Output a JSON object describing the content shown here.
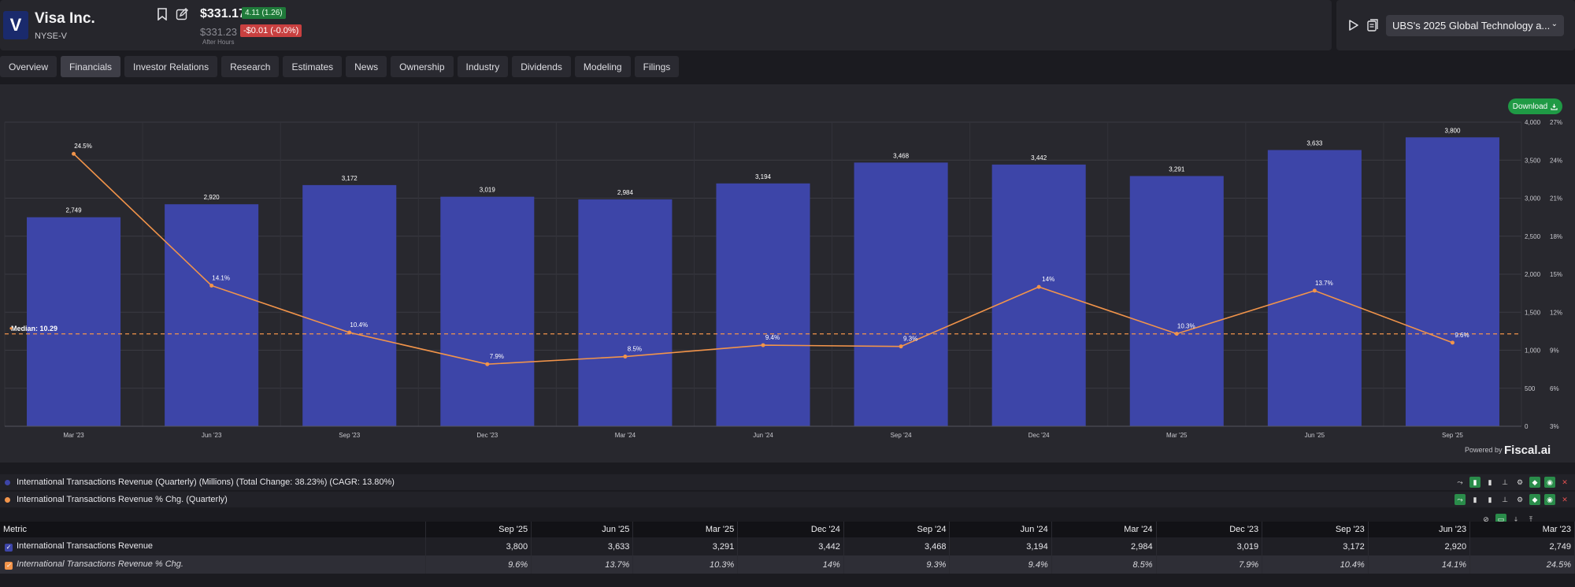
{
  "header": {
    "logo_letter": "V",
    "company": "Visa Inc.",
    "ticker": "NYSE-V",
    "price": "$331.17",
    "change_pos": "4.11 (1.26)",
    "after_hours_price": "$331.23",
    "change_neg": "-$0.01 (-0.0%)",
    "after_hours_label": "After Hours"
  },
  "event": {
    "label": "UBS's 2025 Global Technology a..."
  },
  "tabs": [
    "Overview",
    "Financials",
    "Investor Relations",
    "Research",
    "Estimates",
    "News",
    "Ownership",
    "Industry",
    "Dividends",
    "Modeling",
    "Filings"
  ],
  "active_tab": "Financials",
  "download_label": "Download",
  "powered_label": "Powered by",
  "brand": "Fiscal.ai",
  "chart_data": {
    "type": "bar",
    "categories": [
      "Mar '23",
      "Jun '23",
      "Sep '23",
      "Dec '23",
      "Mar '24",
      "Jun '24",
      "Sep '24",
      "Dec '24",
      "Mar '25",
      "Jun '25",
      "Sep '25"
    ],
    "series": [
      {
        "name": "International Transactions Revenue (Quarterly) (Millions) (Total Change: 38.23%) (CAGR: 13.80%)",
        "type": "bar",
        "axis": "left",
        "values": [
          2749,
          2920,
          3172,
          3019,
          2984,
          3194,
          3468,
          3442,
          3291,
          3633,
          3800
        ],
        "labels": [
          "2,749",
          "2,920",
          "3,172",
          "3,019",
          "2,984",
          "3,194",
          "3,468",
          "3,442",
          "3,291",
          "3,633",
          "3,800"
        ]
      },
      {
        "name": "International Transactions Revenue % Chg. (Quarterly)",
        "type": "line",
        "axis": "right",
        "values": [
          24.5,
          14.1,
          10.4,
          7.9,
          8.5,
          9.4,
          9.3,
          14,
          10.3,
          13.7,
          9.6
        ],
        "labels": [
          "24.5%",
          "14.1%",
          "10.4%",
          "7.9%",
          "8.5%",
          "9.4%",
          "9.3%",
          "14%",
          "10.3%",
          "13.7%",
          "9.6%"
        ]
      }
    ],
    "y_left": {
      "ylim": [
        0,
        4000
      ],
      "ticks": [
        0,
        500,
        1000,
        1500,
        2000,
        2500,
        3000,
        3500,
        4000
      ],
      "tick_labels": [
        "0",
        "500",
        "1,000",
        "1,500",
        "2,000",
        "2,500",
        "3,000",
        "3,500",
        "4,000"
      ]
    },
    "y_right": {
      "ylim": [
        3,
        27
      ],
      "ticks": [
        3,
        6,
        9,
        12,
        15,
        18,
        21,
        24,
        27
      ],
      "tick_labels": [
        "3%",
        "6%",
        "9%",
        "12%",
        "15%",
        "18%",
        "21%",
        "24%",
        "27%"
      ]
    },
    "median": {
      "label": "Median: 10.29",
      "value": 10.29
    },
    "colors": {
      "bar": "#3d45a8",
      "line": "#f2944a",
      "median": "#f2944a"
    },
    "grid": true
  },
  "legend": [
    {
      "label": "International Transactions Revenue (Quarterly) (Millions) (Total Change: 38.23%) (CAGR: 13.80%)",
      "color": "#3d45a8"
    },
    {
      "label": "International Transactions Revenue % Chg. (Quarterly)",
      "color": "#f2944a"
    }
  ],
  "table": {
    "header_metric": "Metric",
    "columns": [
      "Sep '25",
      "Jun '25",
      "Mar '25",
      "Dec '24",
      "Sep '24",
      "Jun '24",
      "Mar '24",
      "Dec '23",
      "Sep '23",
      "Jun '23",
      "Mar '23"
    ],
    "rows": [
      {
        "name": "International Transactions Revenue",
        "values": [
          "3,800",
          "3,633",
          "3,291",
          "3,442",
          "3,468",
          "3,194",
          "2,984",
          "3,019",
          "3,172",
          "2,920",
          "2,749"
        ]
      },
      {
        "name": "International Transactions Revenue % Chg.",
        "values": [
          "9.6%",
          "13.7%",
          "10.3%",
          "14%",
          "9.3%",
          "9.4%",
          "8.5%",
          "7.9%",
          "10.4%",
          "14.1%",
          "24.5%"
        ]
      }
    ]
  }
}
